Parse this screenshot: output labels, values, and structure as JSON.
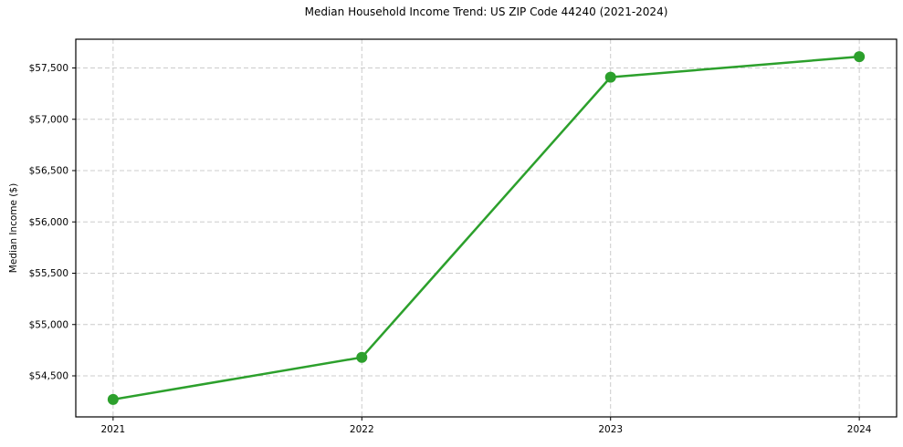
{
  "chart_data": {
    "type": "line",
    "title": "Median Household Income Trend: US ZIP Code 44240 (2021-2024)",
    "xlabel": "",
    "ylabel": "Median Income ($)",
    "x": [
      2021,
      2022,
      2023,
      2024
    ],
    "x_tick_labels": [
      "2021",
      "2022",
      "2023",
      "2024"
    ],
    "series": [
      {
        "name": "Median Household Income",
        "values": [
          54270,
          54680,
          57410,
          57610
        ]
      }
    ],
    "y_ticks": [
      54500,
      55000,
      55500,
      56000,
      56500,
      57000,
      57500
    ],
    "y_tick_labels": [
      "$54,500",
      "$55,000",
      "$55,500",
      "$56,000",
      "$56,500",
      "$57,000",
      "$57,500"
    ],
    "xlim": [
      2020.85,
      2024.15
    ],
    "ylim": [
      54100,
      57780
    ],
    "grid": true,
    "grid_style": "dashed",
    "legend": false,
    "colors": {
      "line": "#2ca02c",
      "marker": "#2ca02c",
      "grid": "#cccccc",
      "spine": "#000000",
      "text": "#000000",
      "background": "#ffffff"
    }
  }
}
